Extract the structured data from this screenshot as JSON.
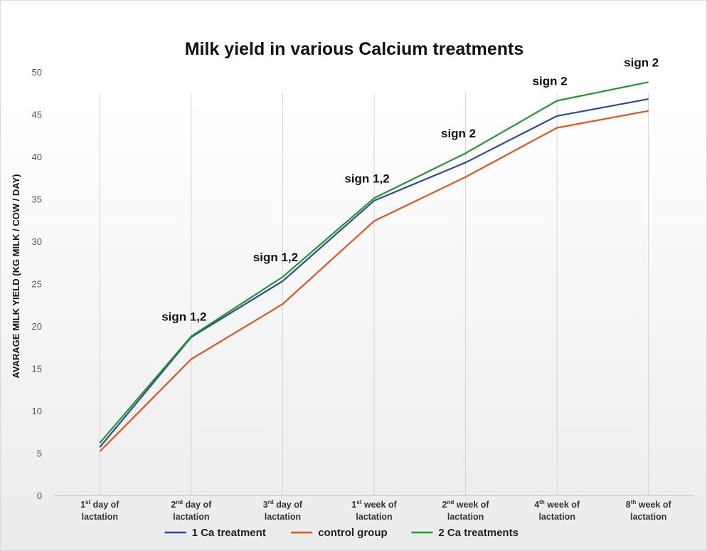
{
  "chart_data": {
    "type": "line",
    "title": "Milk yield in various Calcium treatments",
    "ylabel": "AVARAGE MILK YIELD (KG MILK / COW / DAY)",
    "xlabel": "",
    "ylim": [
      0,
      50
    ],
    "yticks": [
      0,
      5,
      10,
      15,
      20,
      25,
      30,
      35,
      40,
      45,
      50
    ],
    "grid": "vertical category lines",
    "legend_position": "bottom",
    "categories": [
      {
        "pre": "1",
        "sup": "st",
        "post": " day of",
        "line2": "lactation"
      },
      {
        "pre": "2",
        "sup": "nd",
        "post": " day of",
        "line2": "lactation"
      },
      {
        "pre": "3",
        "sup": "rd",
        "post": " day of",
        "line2": "lactation"
      },
      {
        "pre": "1",
        "sup": "st",
        "post": " week of",
        "line2": "lactation"
      },
      {
        "pre": "2",
        "sup": "nd",
        "post": " week of",
        "line2": "lactation"
      },
      {
        "pre": "4",
        "sup": "th",
        "post": " week of",
        "line2": "lactation"
      },
      {
        "pre": "8",
        "sup": "th",
        "post": " week of",
        "line2": "lactation"
      }
    ],
    "series": [
      {
        "name": "1 Ca treatment",
        "color": "#2b4aa8",
        "values": [
          5.7,
          18.7,
          25.3,
          34.8,
          39.3,
          44.8,
          46.8
        ]
      },
      {
        "name": "control group",
        "color": "#e8541c",
        "values": [
          5.2,
          16.1,
          22.6,
          32.4,
          37.6,
          43.4,
          45.4
        ]
      },
      {
        "name": "2 Ca treatments",
        "color": "#1f9a2e",
        "values": [
          6.2,
          18.8,
          25.8,
          35.1,
          40.4,
          46.6,
          48.8
        ]
      }
    ],
    "annotations": [
      {
        "category_index": 1,
        "text": "sign 1,2"
      },
      {
        "category_index": 2,
        "text": "sign 1,2"
      },
      {
        "category_index": 3,
        "text": "sign 1,2"
      },
      {
        "category_index": 4,
        "text": "sign 2"
      },
      {
        "category_index": 5,
        "text": "sign 2"
      },
      {
        "category_index": 6,
        "text": "sign 2"
      }
    ]
  }
}
